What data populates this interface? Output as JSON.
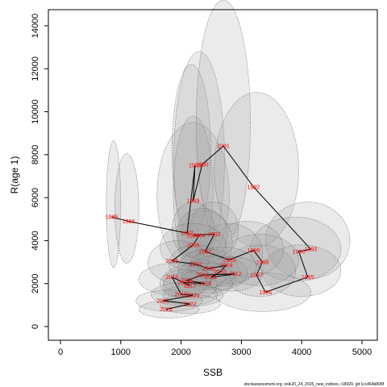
{
  "chart_data": {
    "type": "scatter",
    "title": "",
    "xlabel": "SSB",
    "ylabel": "R(age 1)",
    "xlim": [
      0,
      5000
    ],
    "ylim": [
      0,
      14000
    ],
    "xticks": [
      "0",
      "1000",
      "2000",
      "3000",
      "4000",
      "5000"
    ],
    "yticks": [
      "0",
      "2000",
      "4000",
      "6000",
      "8000",
      "10000",
      "12000",
      "14000"
    ],
    "grid": false,
    "legend": "none",
    "series_color": "#ff0000",
    "line_color": "#000000",
    "ellipse_fill": "#9a9a9a",
    "points": [
      {
        "year": "1985",
        "ssb": 850,
        "rec": 5100
      },
      {
        "year": "1986",
        "ssb": 1130,
        "rec": 4900
      },
      {
        "year": "1987",
        "ssb": 2100,
        "rec": 4350
      },
      {
        "year": "1988",
        "ssb": 2230,
        "rec": 7500
      },
      {
        "year": "1989",
        "ssb": 2200,
        "rec": 5850
      },
      {
        "year": "1990",
        "ssb": 2350,
        "rec": 7550
      },
      {
        "year": "1991",
        "ssb": 2700,
        "rec": 8400
      },
      {
        "year": "1992",
        "ssb": 3200,
        "rec": 6500
      },
      {
        "year": "1993",
        "ssb": 4150,
        "rec": 3600
      },
      {
        "year": "1994",
        "ssb": 3950,
        "rec": 3500
      },
      {
        "year": "1995",
        "ssb": 4100,
        "rec": 2300
      },
      {
        "year": "1996",
        "ssb": 3400,
        "rec": 1600
      },
      {
        "year": "1997",
        "ssb": 3250,
        "rec": 2400
      },
      {
        "year": "1998",
        "ssb": 3350,
        "rec": 3000
      },
      {
        "year": "1999",
        "ssb": 3200,
        "rec": 3550
      },
      {
        "year": "2000",
        "ssb": 2800,
        "rec": 3100
      },
      {
        "year": "2001",
        "ssb": 2400,
        "rec": 3500
      },
      {
        "year": "2002",
        "ssb": 2550,
        "rec": 4300
      },
      {
        "year": "2003",
        "ssb": 2200,
        "rec": 4250
      },
      {
        "year": "2004",
        "ssb": 2300,
        "rec": 4250
      },
      {
        "year": "2005",
        "ssb": 2200,
        "rec": 3800
      },
      {
        "year": "2006",
        "ssb": 1850,
        "rec": 3050
      },
      {
        "year": "2007",
        "ssb": 2250,
        "rec": 2900
      },
      {
        "year": "2008",
        "ssb": 2450,
        "rec": 2700
      },
      {
        "year": "2009",
        "ssb": 2750,
        "rec": 2850
      },
      {
        "year": "2010",
        "ssb": 2650,
        "rec": 2550
      },
      {
        "year": "2011",
        "ssb": 2500,
        "rec": 2300
      },
      {
        "year": "2012",
        "ssb": 2900,
        "rec": 2450
      },
      {
        "year": "2013",
        "ssb": 2350,
        "rec": 2400
      },
      {
        "year": "2014",
        "ssb": 2100,
        "rec": 2150
      },
      {
        "year": "2015",
        "ssb": 2400,
        "rec": 2000
      },
      {
        "year": "2016",
        "ssb": 2050,
        "rec": 2050
      },
      {
        "year": "2017",
        "ssb": 2150,
        "rec": 1900
      },
      {
        "year": "2018",
        "ssb": 1850,
        "rec": 2300
      },
      {
        "year": "2019",
        "ssb": 2000,
        "rec": 1500
      },
      {
        "year": "2020",
        "ssb": 2200,
        "rec": 1450
      },
      {
        "year": "2021",
        "ssb": 1700,
        "rec": 1200
      },
      {
        "year": "2022",
        "ssb": 2150,
        "rec": 1050
      },
      {
        "year": "2023",
        "ssb": 1750,
        "rec": 800
      }
    ],
    "ellipses": [
      {
        "year": "1985",
        "cx": 880,
        "cy": 5700,
        "rx": 120,
        "ry": 2950
      },
      {
        "year": "1986",
        "cx": 1100,
        "cy": 5500,
        "rx": 200,
        "ry": 2550
      },
      {
        "year": "1987",
        "cx": 2200,
        "cy": 6100,
        "rx": 600,
        "ry": 3400
      },
      {
        "year": "1988",
        "cx": 2170,
        "cy": 8200,
        "rx": 320,
        "ry": 4000
      },
      {
        "year": "1989",
        "cx": 2200,
        "cy": 6300,
        "rx": 330,
        "ry": 3500
      },
      {
        "year": "1990",
        "cx": 2300,
        "cy": 7800,
        "rx": 420,
        "ry": 5000
      },
      {
        "year": "1991",
        "cx": 2700,
        "cy": 9500,
        "rx": 450,
        "ry": 5700
      },
      {
        "year": "1992",
        "cx": 3250,
        "cy": 7300,
        "rx": 700,
        "ry": 3600
      },
      {
        "year": "1993",
        "cx": 4100,
        "cy": 4000,
        "rx": 700,
        "ry": 1800
      },
      {
        "year": "1994",
        "cx": 3900,
        "cy": 3600,
        "rx": 750,
        "ry": 1500
      },
      {
        "year": "1995",
        "cx": 4000,
        "cy": 2600,
        "rx": 650,
        "ry": 1200
      },
      {
        "year": "1996",
        "cx": 3350,
        "cy": 1600,
        "rx": 800,
        "ry": 900
      },
      {
        "year": "1997",
        "cx": 3300,
        "cy": 2600,
        "rx": 600,
        "ry": 1200
      },
      {
        "year": "1998",
        "cx": 3300,
        "cy": 3100,
        "rx": 650,
        "ry": 1200
      },
      {
        "year": "1999",
        "cx": 3100,
        "cy": 3600,
        "rx": 600,
        "ry": 1300
      },
      {
        "year": "2000",
        "cx": 2800,
        "cy": 3400,
        "rx": 550,
        "ry": 1400
      },
      {
        "year": "2001",
        "cx": 2400,
        "cy": 3900,
        "rx": 450,
        "ry": 1500
      },
      {
        "year": "2002",
        "cx": 2550,
        "cy": 4500,
        "rx": 400,
        "ry": 1300
      },
      {
        "year": "2003",
        "cx": 2200,
        "cy": 4500,
        "rx": 350,
        "ry": 1300
      },
      {
        "year": "2004",
        "cx": 2350,
        "cy": 4300,
        "rx": 420,
        "ry": 1200
      },
      {
        "year": "2005",
        "cx": 2200,
        "cy": 3700,
        "rx": 550,
        "ry": 1100
      },
      {
        "year": "2006",
        "cx": 1950,
        "cy": 3000,
        "rx": 500,
        "ry": 1000
      },
      {
        "year": "2007",
        "cx": 2250,
        "cy": 2900,
        "rx": 450,
        "ry": 900
      },
      {
        "year": "2008",
        "cx": 2450,
        "cy": 2700,
        "rx": 500,
        "ry": 900
      },
      {
        "year": "2009",
        "cx": 2700,
        "cy": 2800,
        "rx": 550,
        "ry": 900
      },
      {
        "year": "2010",
        "cx": 2600,
        "cy": 2500,
        "rx": 500,
        "ry": 800
      },
      {
        "year": "2011",
        "cx": 2450,
        "cy": 2250,
        "rx": 450,
        "ry": 700
      },
      {
        "year": "2012",
        "cx": 2850,
        "cy": 2450,
        "rx": 500,
        "ry": 800
      },
      {
        "year": "2013",
        "cx": 2350,
        "cy": 2400,
        "rx": 400,
        "ry": 700
      },
      {
        "year": "2014",
        "cx": 2100,
        "cy": 2150,
        "rx": 400,
        "ry": 700
      },
      {
        "year": "2015",
        "cx": 2400,
        "cy": 2000,
        "rx": 450,
        "ry": 650
      },
      {
        "year": "2016",
        "cx": 2050,
        "cy": 2000,
        "rx": 400,
        "ry": 650
      },
      {
        "year": "2017",
        "cx": 2150,
        "cy": 1900,
        "rx": 450,
        "ry": 650
      },
      {
        "year": "2018",
        "cx": 1900,
        "cy": 2200,
        "rx": 600,
        "ry": 750
      },
      {
        "year": "2019",
        "cx": 2050,
        "cy": 1500,
        "rx": 550,
        "ry": 550
      },
      {
        "year": "2020",
        "cx": 2200,
        "cy": 1450,
        "rx": 500,
        "ry": 500
      },
      {
        "year": "2021",
        "cx": 1800,
        "cy": 1200,
        "rx": 550,
        "ry": 500
      },
      {
        "year": "2022",
        "cx": 2150,
        "cy": 1050,
        "rx": 500,
        "ry": 450
      },
      {
        "year": "2023",
        "cx": 1800,
        "cy": 800,
        "rx": 500,
        "ry": 400
      }
    ]
  },
  "footer": "stockassessment.org, sole20_24_2025_new_indices, r18929, git:1cc464b808f"
}
